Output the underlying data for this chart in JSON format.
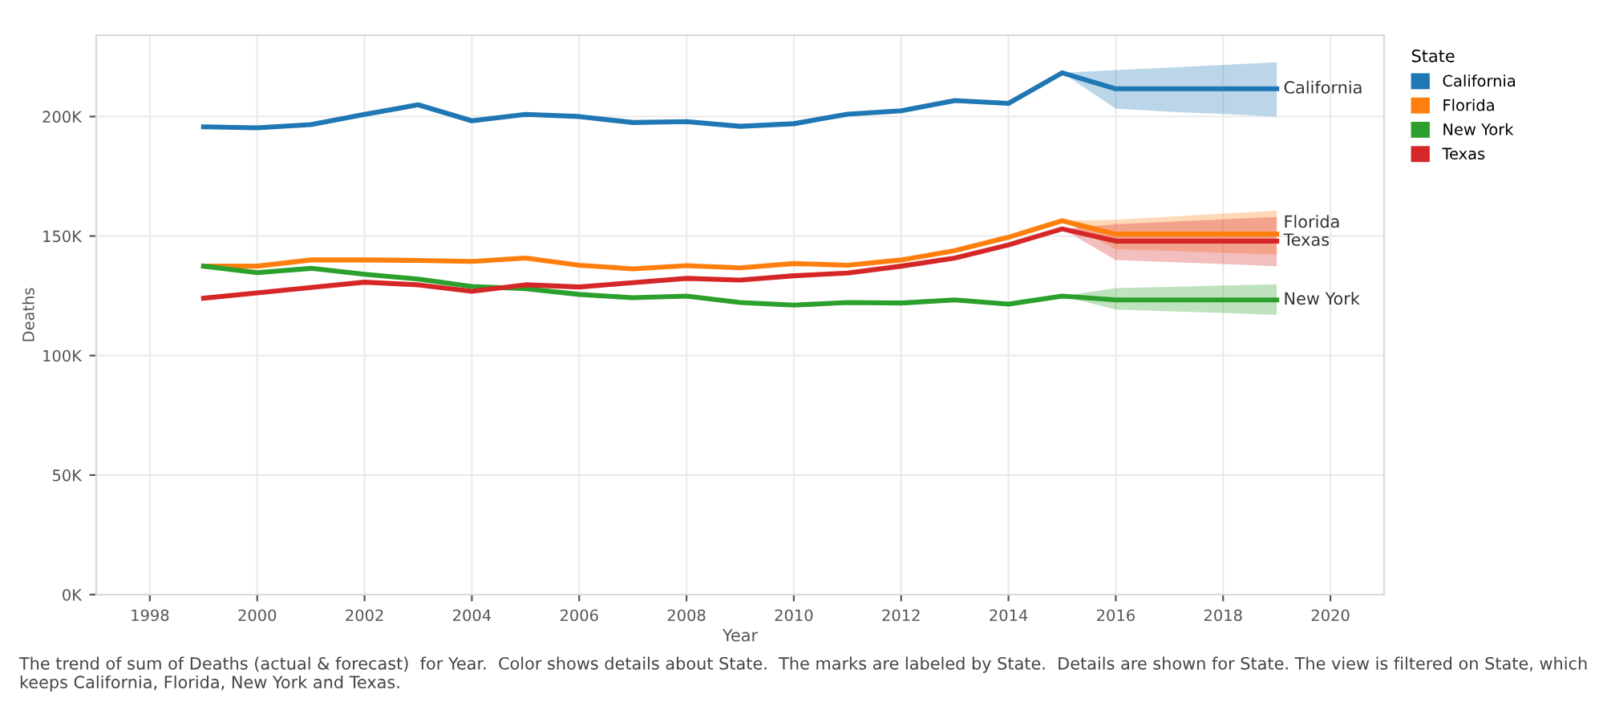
{
  "chart_data": {
    "type": "line",
    "xlabel": "Year",
    "ylabel": "Deaths",
    "legend_title": "State",
    "legend": "right",
    "grid": true,
    "x": [
      1999,
      2000,
      2001,
      2002,
      2003,
      2004,
      2005,
      2006,
      2007,
      2008,
      2009,
      2010,
      2011,
      2012,
      2013,
      2014,
      2015,
      2016,
      2017,
      2018,
      2019
    ],
    "series": [
      {
        "name": "California",
        "color": "#1f77b4",
        "values": [
          195700,
          195300,
          196600,
          200900,
          204900,
          198200,
          200900,
          200000,
          197500,
          197900,
          195900,
          197000,
          201000,
          202400,
          206700,
          205500,
          218300,
          211600,
          211600,
          211600,
          211600
        ],
        "lower": [
          null,
          null,
          null,
          null,
          null,
          null,
          null,
          null,
          null,
          null,
          null,
          null,
          null,
          null,
          null,
          null,
          218300,
          203300,
          202000,
          201100,
          200000
        ],
        "upper": [
          null,
          null,
          null,
          null,
          null,
          null,
          null,
          null,
          null,
          null,
          null,
          null,
          null,
          null,
          null,
          null,
          218300,
          219400,
          220500,
          221600,
          222700
        ]
      },
      {
        "name": "Florida",
        "color": "#ff7f0e",
        "values": [
          137400,
          137400,
          140000,
          140000,
          139800,
          139400,
          140800,
          137800,
          136300,
          137600,
          136700,
          138500,
          137800,
          140000,
          143900,
          149500,
          156400,
          150800,
          150800,
          150800,
          150800
        ],
        "lower": [
          null,
          null,
          null,
          null,
          null,
          null,
          null,
          null,
          null,
          null,
          null,
          null,
          null,
          null,
          null,
          null,
          156400,
          144500,
          143800,
          143000,
          142300
        ],
        "upper": [
          null,
          null,
          null,
          null,
          null,
          null,
          null,
          null,
          null,
          null,
          null,
          null,
          null,
          null,
          null,
          null,
          156400,
          156800,
          158100,
          159400,
          160600
        ]
      },
      {
        "name": "New York",
        "color": "#2ca02c",
        "values": [
          137400,
          134700,
          136500,
          134000,
          132000,
          128900,
          128000,
          125600,
          124200,
          124900,
          122200,
          121100,
          122200,
          122000,
          123300,
          121500,
          124900,
          123300,
          123300,
          123300,
          123300
        ],
        "lower": [
          null,
          null,
          null,
          null,
          null,
          null,
          null,
          null,
          null,
          null,
          null,
          null,
          null,
          null,
          null,
          null,
          124900,
          119300,
          118500,
          117800,
          117000
        ],
        "upper": [
          null,
          null,
          null,
          null,
          null,
          null,
          null,
          null,
          null,
          null,
          null,
          null,
          null,
          null,
          null,
          null,
          124900,
          128200,
          128700,
          129300,
          129800
        ]
      },
      {
        "name": "Texas",
        "color": "#d62728",
        "values": [
          124000,
          126200,
          128500,
          130700,
          129600,
          126900,
          129600,
          128700,
          130500,
          132300,
          131600,
          133400,
          134500,
          137400,
          140800,
          146300,
          153000,
          147900,
          147900,
          147900,
          147900
        ],
        "lower": [
          null,
          null,
          null,
          null,
          null,
          null,
          null,
          null,
          null,
          null,
          null,
          null,
          null,
          null,
          null,
          null,
          153000,
          140000,
          139100,
          138300,
          137400
        ],
        "upper": [
          null,
          null,
          null,
          null,
          null,
          null,
          null,
          null,
          null,
          null,
          null,
          null,
          null,
          null,
          null,
          null,
          153000,
          155000,
          156000,
          157000,
          158000
        ]
      }
    ],
    "xlim": [
      1997,
      2021
    ],
    "xticks": [
      1998,
      2000,
      2002,
      2004,
      2006,
      2008,
      2010,
      2012,
      2014,
      2016,
      2018,
      2020
    ],
    "ylim": [
      0,
      234000
    ],
    "yticks": [
      {
        "value": 0,
        "label": "0K"
      },
      {
        "value": 50000,
        "label": "50K"
      },
      {
        "value": 100000,
        "label": "100K"
      },
      {
        "value": 150000,
        "label": "150K"
      },
      {
        "value": 200000,
        "label": "200K"
      }
    ],
    "annotations": [
      "The trend of sum of Deaths (actual & forecast)  for Year.  Color shows details about State.  The marks are labeled by State.  Details are shown for State. The view is filtered on State, which keeps California, Florida, New York and Texas."
    ]
  }
}
